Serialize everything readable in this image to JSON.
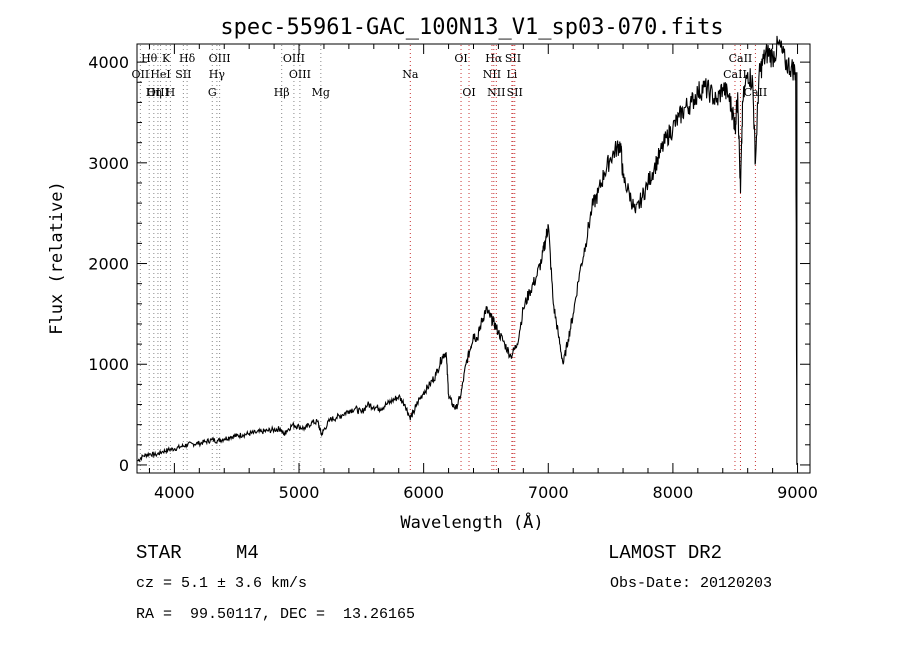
{
  "chart_data": {
    "type": "line",
    "title": "spec-55961-GAC_100N13_V1_sp03-070.fits",
    "xlabel": "Wavelength (Å)",
    "ylabel": "Flux (relative)",
    "xlim": [
      3700,
      9100
    ],
    "ylim": [
      -80,
      4180
    ],
    "xticks": [
      4000,
      5000,
      6000,
      7000,
      8000,
      9000
    ],
    "yticks": [
      0,
      1000,
      2000,
      3000,
      4000
    ],
    "series": [
      {
        "color": "#000000",
        "points": [
          [
            3705,
            40
          ],
          [
            3750,
            90
          ],
          [
            3800,
            110
          ],
          [
            3850,
            100
          ],
          [
            3900,
            130
          ],
          [
            3950,
            150
          ],
          [
            4000,
            160
          ],
          [
            4050,
            180
          ],
          [
            4100,
            200
          ],
          [
            4150,
            210
          ],
          [
            4200,
            215
          ],
          [
            4250,
            230
          ],
          [
            4300,
            250
          ],
          [
            4350,
            240
          ],
          [
            4400,
            260
          ],
          [
            4450,
            280
          ],
          [
            4500,
            290
          ],
          [
            4550,
            300
          ],
          [
            4600,
            310
          ],
          [
            4650,
            320
          ],
          [
            4700,
            330
          ],
          [
            4750,
            340
          ],
          [
            4800,
            350
          ],
          [
            4850,
            360
          ],
          [
            4880,
            300
          ],
          [
            4900,
            340
          ],
          [
            4950,
            400
          ],
          [
            5000,
            380
          ],
          [
            5050,
            360
          ],
          [
            5100,
            420
          ],
          [
            5150,
            430
          ],
          [
            5180,
            300
          ],
          [
            5200,
            350
          ],
          [
            5250,
            450
          ],
          [
            5300,
            470
          ],
          [
            5350,
            500
          ],
          [
            5400,
            540
          ],
          [
            5450,
            560
          ],
          [
            5500,
            520
          ],
          [
            5550,
            600
          ],
          [
            5600,
            580
          ],
          [
            5650,
            560
          ],
          [
            5700,
            600
          ],
          [
            5750,
            640
          ],
          [
            5800,
            680
          ],
          [
            5850,
            600
          ],
          [
            5890,
            470
          ],
          [
            5920,
            520
          ],
          [
            5950,
            620
          ],
          [
            6000,
            720
          ],
          [
            6050,
            800
          ],
          [
            6100,
            900
          ],
          [
            6150,
            1080
          ],
          [
            6180,
            1120
          ],
          [
            6200,
            700
          ],
          [
            6230,
            600
          ],
          [
            6260,
            560
          ],
          [
            6300,
            700
          ],
          [
            6340,
            1000
          ],
          [
            6380,
            1180
          ],
          [
            6400,
            1300
          ],
          [
            6430,
            1250
          ],
          [
            6460,
            1400
          ],
          [
            6500,
            1550
          ],
          [
            6530,
            1480
          ],
          [
            6560,
            1420
          ],
          [
            6600,
            1320
          ],
          [
            6650,
            1200
          ],
          [
            6700,
            1080
          ],
          [
            6750,
            1200
          ],
          [
            6800,
            1550
          ],
          [
            6850,
            1720
          ],
          [
            6900,
            1850
          ],
          [
            6950,
            2050
          ],
          [
            6980,
            2250
          ],
          [
            7000,
            2380
          ],
          [
            7040,
            1600
          ],
          [
            7080,
            1300
          ],
          [
            7120,
            1000
          ],
          [
            7160,
            1250
          ],
          [
            7200,
            1500
          ],
          [
            7250,
            1900
          ],
          [
            7300,
            2200
          ],
          [
            7350,
            2550
          ],
          [
            7400,
            2700
          ],
          [
            7450,
            2900
          ],
          [
            7500,
            3050
          ],
          [
            7550,
            3150
          ],
          [
            7580,
            3180
          ],
          [
            7600,
            2850
          ],
          [
            7650,
            2700
          ],
          [
            7700,
            2500
          ],
          [
            7750,
            2650
          ],
          [
            7800,
            2800
          ],
          [
            7850,
            2950
          ],
          [
            7900,
            3100
          ],
          [
            7950,
            3250
          ],
          [
            8000,
            3350
          ],
          [
            8050,
            3450
          ],
          [
            8100,
            3550
          ],
          [
            8150,
            3600
          ],
          [
            8200,
            3700
          ],
          [
            8250,
            3750
          ],
          [
            8300,
            3700
          ],
          [
            8350,
            3600
          ],
          [
            8400,
            3750
          ],
          [
            8450,
            3650
          ],
          [
            8480,
            3500
          ],
          [
            8500,
            3350
          ],
          [
            8520,
            3700
          ],
          [
            8542,
            2700
          ],
          [
            8560,
            3600
          ],
          [
            8600,
            3900
          ],
          [
            8640,
            3800
          ],
          [
            8662,
            3000
          ],
          [
            8690,
            3850
          ],
          [
            8720,
            4000
          ],
          [
            8760,
            4100
          ],
          [
            8800,
            4050
          ],
          [
            8850,
            4180
          ],
          [
            8900,
            4000
          ],
          [
            8950,
            3950
          ],
          [
            8985,
            3900
          ],
          [
            8995,
            0
          ]
        ]
      }
    ],
    "lines": [
      {
        "label": "Hθ",
        "x": 3798,
        "row": 1,
        "color": "#888888"
      },
      {
        "label": "K",
        "x": 3934,
        "row": 1,
        "color": "#888888"
      },
      {
        "label": "Hδ",
        "x": 4102,
        "row": 1,
        "color": "#888888"
      },
      {
        "label": "OIII",
        "x": 4363,
        "row": 1,
        "color": "#888888"
      },
      {
        "label": "OIII",
        "x": 4959,
        "row": 1,
        "color": "#888888"
      },
      {
        "label": "OI",
        "x": 6300,
        "row": 1,
        "color": "#c83232"
      },
      {
        "label": "Hα",
        "x": 6563,
        "row": 1,
        "color": "#c83232"
      },
      {
        "label": "SII",
        "x": 6717,
        "row": 1,
        "color": "#c83232"
      },
      {
        "label": "CaII",
        "x": 8542,
        "row": 1,
        "color": "#c83232"
      },
      {
        "label": "OII",
        "x": 3727,
        "row": 2,
        "color": "#888888"
      },
      {
        "label": "HeI",
        "x": 3889,
        "row": 2,
        "color": "#888888"
      },
      {
        "label": "SII",
        "x": 4072,
        "row": 2,
        "color": "#888888"
      },
      {
        "label": "Hγ",
        "x": 4341,
        "row": 2,
        "color": "#888888"
      },
      {
        "label": "OIII",
        "x": 5007,
        "row": 2,
        "color": "#888888"
      },
      {
        "label": "Na",
        "x": 5893,
        "row": 2,
        "color": "#c83232"
      },
      {
        "label": "NII",
        "x": 6548,
        "row": 2,
        "color": "#c83232"
      },
      {
        "label": "Li",
        "x": 6708,
        "row": 2,
        "color": "#c83232"
      },
      {
        "label": "CaII",
        "x": 8498,
        "row": 2,
        "color": "#c83232"
      },
      {
        "label": "OIII",
        "x": 3868,
        "row": 3,
        "color": "#888888"
      },
      {
        "label": "Hη",
        "x": 3835,
        "row": 3,
        "color": "#888888"
      },
      {
        "label": "H",
        "x": 3968,
        "row": 3,
        "color": "#888888"
      },
      {
        "label": "G",
        "x": 4304,
        "row": 3,
        "color": "#888888"
      },
      {
        "label": "Hβ",
        "x": 4861,
        "row": 3,
        "color": "#888888"
      },
      {
        "label": "Mg",
        "x": 5175,
        "row": 3,
        "color": "#888888"
      },
      {
        "label": "OI",
        "x": 6364,
        "row": 3,
        "color": "#c83232"
      },
      {
        "label": "NII",
        "x": 6583,
        "row": 3,
        "color": "#c83232"
      },
      {
        "label": "SII",
        "x": 6731,
        "row": 3,
        "color": "#c83232"
      },
      {
        "label": "CaII",
        "x": 8662,
        "row": 3,
        "color": "#c83232"
      }
    ]
  },
  "info": {
    "object_class": "STAR",
    "subclass": "M4",
    "survey": "LAMOST DR2",
    "redshift_text": "cz = 5.1 ± 3.6 km/s",
    "obs_date": "Obs-Date: 20120203",
    "coords": "RA =  99.50117, DEC =  13.26165"
  }
}
